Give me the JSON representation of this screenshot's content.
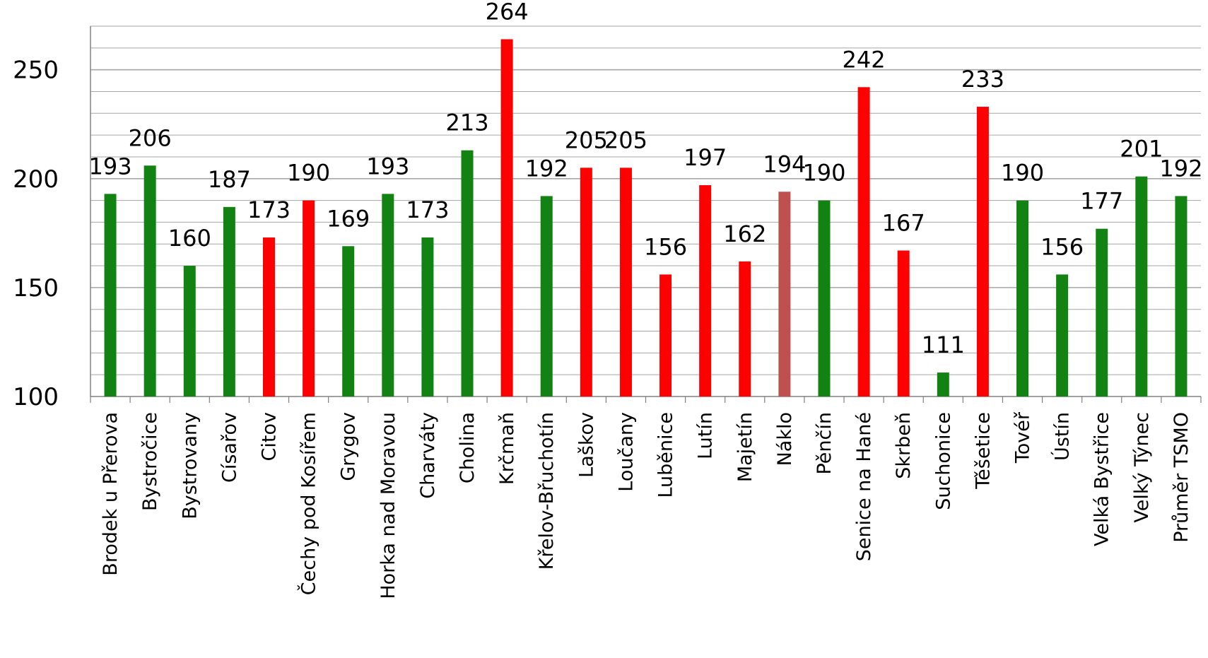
{
  "chart_data": {
    "type": "bar",
    "title": "",
    "xlabel": "",
    "ylabel": "",
    "ylim": [
      100,
      270
    ],
    "yticks": [
      100,
      150,
      200,
      250
    ],
    "grid": true,
    "legend": "none",
    "colors": {
      "green": "#128212",
      "red": "#ff0000",
      "muted": "#c0504d",
      "grid": "#a6a6a6",
      "axis": "#808080"
    },
    "categories": [
      "Brodek u Přerova",
      "Bystročice",
      "Bystrovany",
      "Císařov",
      "Citov",
      "Čechy pod Kosířem",
      "Grygov",
      "Horka nad Moravou",
      "Charváty",
      "Cholina",
      "Krčmaň",
      "Křelov-Břuchotín",
      "Laškov",
      "Loučany",
      "Luběnice",
      "Lutín",
      "Majetín",
      "Náklo",
      "Pěnčín",
      "Senice na Hané",
      "Skrbeň",
      "Suchonice",
      "Těšetice",
      "Tovéř",
      "Ústín",
      "Velká Bystřice",
      "Velký Týnec",
      "Průměr TSMO"
    ],
    "values": [
      193,
      206,
      160,
      187,
      173,
      190,
      169,
      193,
      173,
      213,
      264,
      192,
      205,
      205,
      156,
      197,
      162,
      194,
      190,
      242,
      167,
      111,
      233,
      190,
      156,
      177,
      201,
      192
    ],
    "bar_colors": [
      "green",
      "green",
      "green",
      "green",
      "red",
      "red",
      "green",
      "green",
      "green",
      "green",
      "red",
      "green",
      "red",
      "red",
      "red",
      "red",
      "red",
      "muted",
      "green",
      "red",
      "red",
      "green",
      "red",
      "green",
      "green",
      "green",
      "green",
      "green"
    ],
    "data_labels": [
      "193",
      "206",
      "160",
      "187",
      "173",
      "190",
      "169",
      "193",
      "173",
      "213",
      "264",
      "192",
      "205",
      "205",
      "156",
      "197",
      "162",
      "194",
      "190",
      "242",
      "167",
      "111",
      "233",
      "190",
      "156",
      "177",
      "201",
      "192"
    ]
  }
}
